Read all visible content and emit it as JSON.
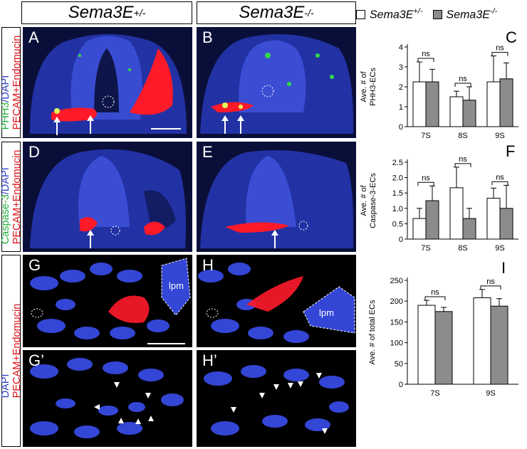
{
  "column_headers": [
    {
      "base": "Sema3E",
      "sup": "+/-"
    },
    {
      "base": "Sema3E",
      "sup": "-/-"
    }
  ],
  "row_labels": {
    "row1": {
      "a": "PHH3",
      "b": "/DAPI",
      "c": "PECAM+Endomucin"
    },
    "row2": {
      "a": "Caspase-3",
      "b": "/DAPI",
      "c": "PECAM+Endomucin"
    },
    "row3": {
      "a": "DAPI",
      "b": "",
      "c": "PECAM+Endomucin"
    }
  },
  "panel_letters": {
    "A": "A",
    "B": "B",
    "D": "D",
    "E": "E",
    "G": "G",
    "H": "H",
    "G2": "G’",
    "H2": "H’",
    "C": "C",
    "F": "F",
    "I": "I"
  },
  "lpm_label": "lpm",
  "legend": [
    {
      "base": "Sema3E",
      "sup": "+/-",
      "color": "#ffffff"
    },
    {
      "base": "Sema3E",
      "sup": "-/-",
      "color": "#8c8c8c"
    }
  ],
  "colors": {
    "het": "#ffffff",
    "ko": "#8c8c8c",
    "dapi": "#2b3fc8",
    "pecam": "#ff1a2a",
    "marker": "#34d94a"
  },
  "chart_data": [
    {
      "type": "bar",
      "panel": "C",
      "ylabel": "Ave. # of\nPHH3-ECs",
      "categories": [
        "7S",
        "8S",
        "9S"
      ],
      "ylim": [
        0,
        4
      ],
      "yticks": [
        0,
        1,
        2,
        3,
        4
      ],
      "series": [
        {
          "name": "Sema3E+/-",
          "values": [
            2.25,
            1.5,
            2.25
          ],
          "errors": [
            1.0,
            0.28,
            1.3
          ]
        },
        {
          "name": "Sema3E-/-",
          "values": [
            2.25,
            1.33,
            2.4
          ],
          "errors": [
            0.63,
            0.67,
            0.8
          ]
        }
      ],
      "annotations": [
        "ns",
        "ns",
        "ns"
      ]
    },
    {
      "type": "bar",
      "panel": "F",
      "ylabel": "Ave. # of\nCaspase-3-ECs",
      "categories": [
        "7S",
        "8S",
        "9S"
      ],
      "ylim": [
        0,
        2.5
      ],
      "yticks": [
        0,
        0.5,
        1.0,
        1.5,
        2.0,
        2.5
      ],
      "ytick_labels": [
        "0",
        "0.5",
        "1.0",
        "1.5",
        "2.0",
        "2.5"
      ],
      "series": [
        {
          "name": "Sema3E+/-",
          "values": [
            0.67,
            1.67,
            1.33
          ],
          "errors": [
            0.33,
            0.67,
            0.33
          ]
        },
        {
          "name": "Sema3E-/-",
          "values": [
            1.25,
            0.67,
            1.0
          ],
          "errors": [
            0.48,
            0.33,
            0.75
          ]
        }
      ],
      "annotations": [
        "ns",
        "ns",
        "ns"
      ]
    },
    {
      "type": "bar",
      "panel": "I",
      "ylabel": "Ave. # of total ECs",
      "categories": [
        "7S",
        "9S"
      ],
      "ylim": [
        0,
        250
      ],
      "yticks": [
        0,
        50,
        100,
        150,
        200,
        250
      ],
      "series": [
        {
          "name": "Sema3E+/-",
          "values": [
            190,
            208
          ],
          "errors": [
            12,
            20
          ]
        },
        {
          "name": "Sema3E-/-",
          "values": [
            175,
            188
          ],
          "errors": [
            10,
            18
          ]
        }
      ],
      "annotations": [
        "ns",
        "ns"
      ]
    }
  ]
}
